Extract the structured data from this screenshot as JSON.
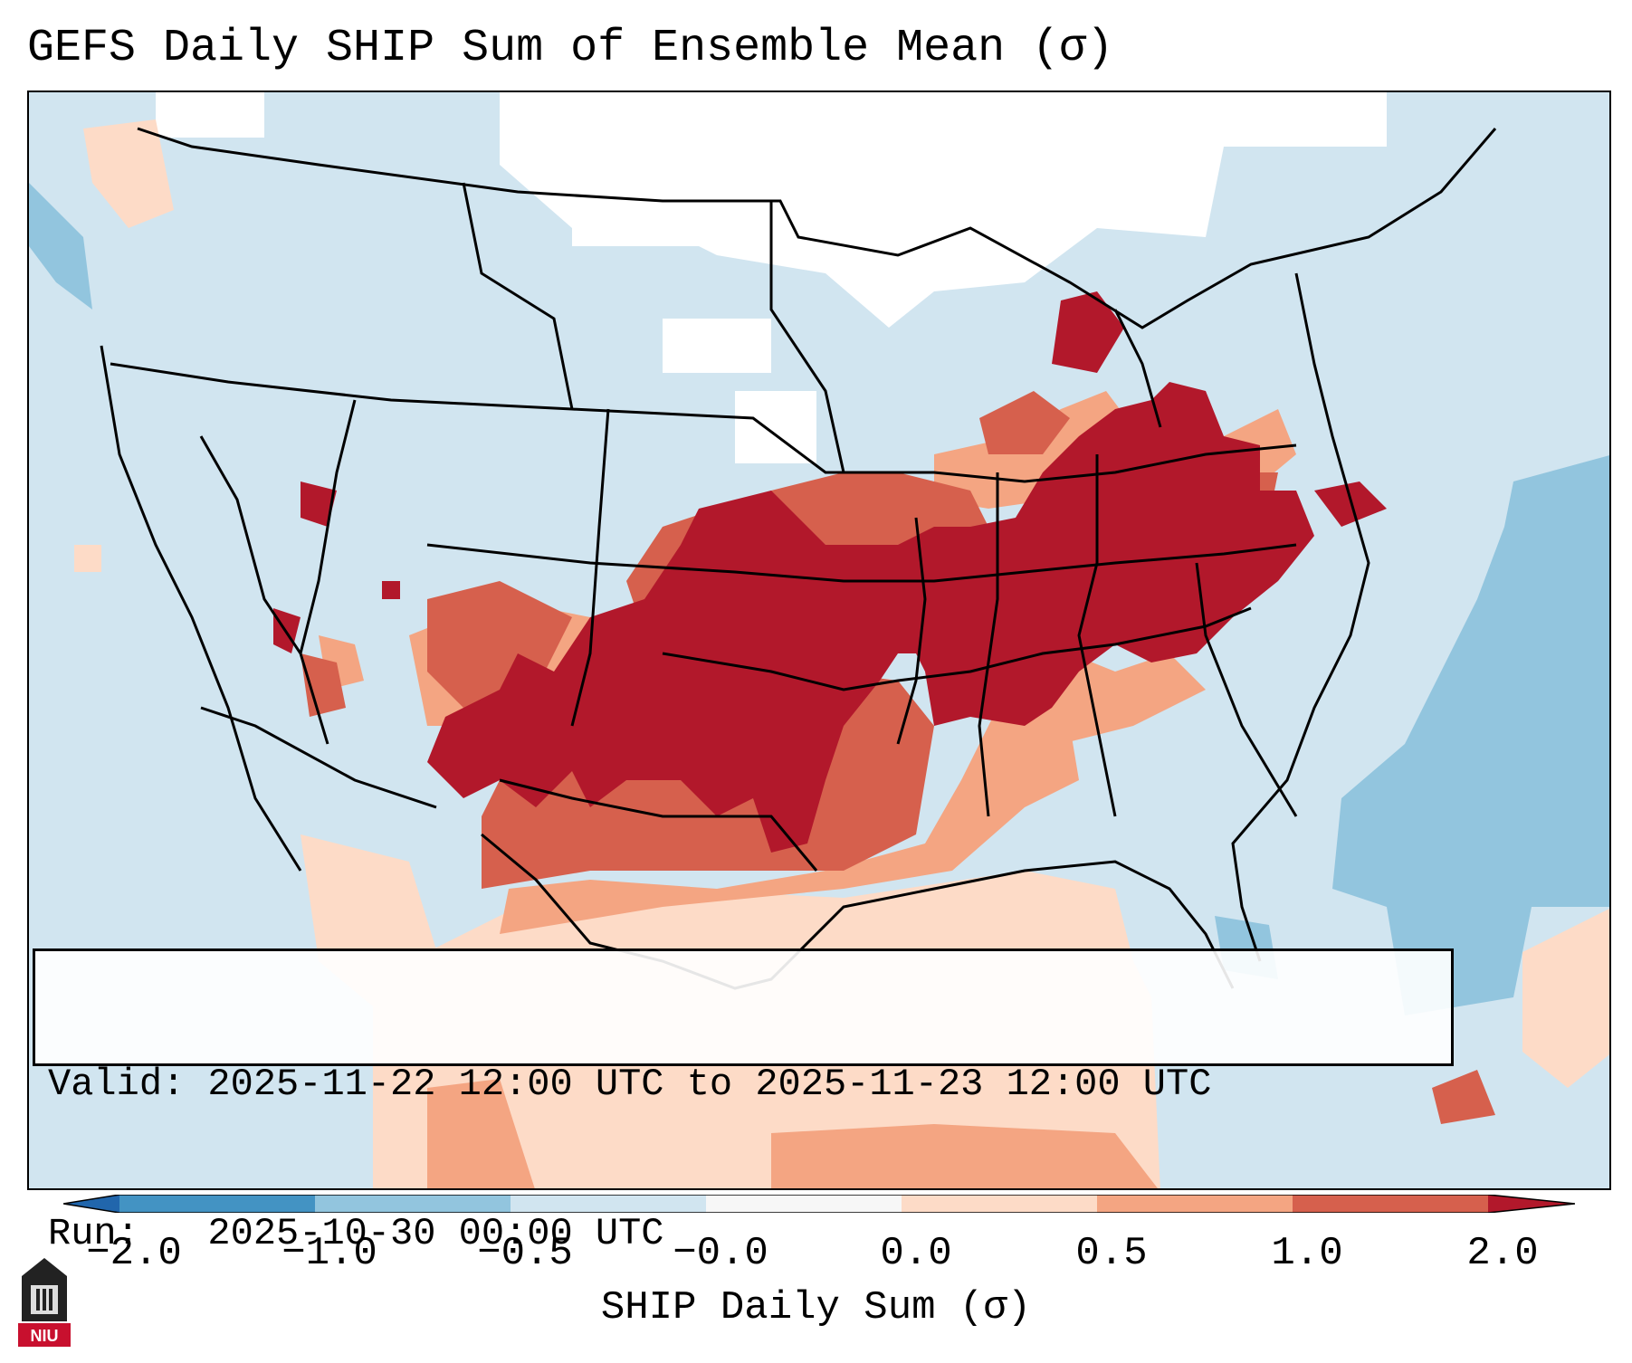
{
  "title": "GEFS Daily SHIP Sum of Ensemble Mean (σ)",
  "info": {
    "valid_line": "Valid: 2025-11-22 12:00 UTC to 2025-11-23 12:00 UTC",
    "run_line": "Run:   2025-10-30 00:00 UTC"
  },
  "colorbar": {
    "label": "SHIP Daily Sum (σ)",
    "ticks": [
      "−2.0",
      "−1.0",
      "−0.5",
      "−0.0",
      "0.0",
      "0.5",
      "1.0",
      "2.0"
    ],
    "colors": {
      "extend_low": "#2166ac",
      "lt_-1": "#4393c3",
      "-1_-0.5": "#92c5de",
      "-0.5_0": "#d1e5f0",
      "0_0.5": "#fddbc7",
      "0.5_1": "#f4a582",
      "1_2": "#d6604d",
      "gt_2": "#b2182b"
    }
  },
  "logo": {
    "text": "NIU"
  }
}
